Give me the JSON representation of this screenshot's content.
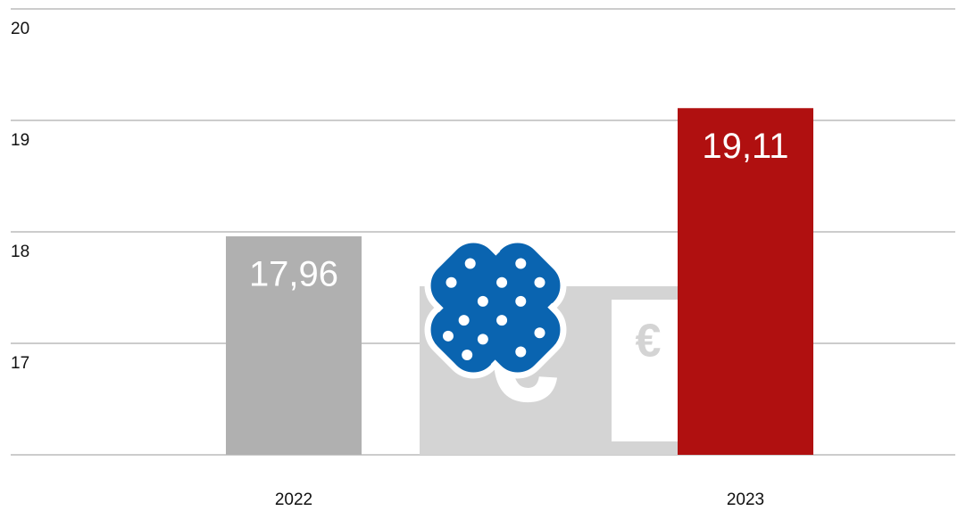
{
  "chart_data": {
    "type": "bar",
    "categories": [
      "2022",
      "2023"
    ],
    "values": [
      17.96,
      19.11
    ],
    "value_labels": [
      "17,96",
      "19,11"
    ],
    "colors": [
      "#b0b0b0",
      "#b01010"
    ],
    "ylim": [
      16,
      20
    ],
    "yticks": [
      17,
      18,
      19,
      20
    ],
    "grid": true
  }
}
